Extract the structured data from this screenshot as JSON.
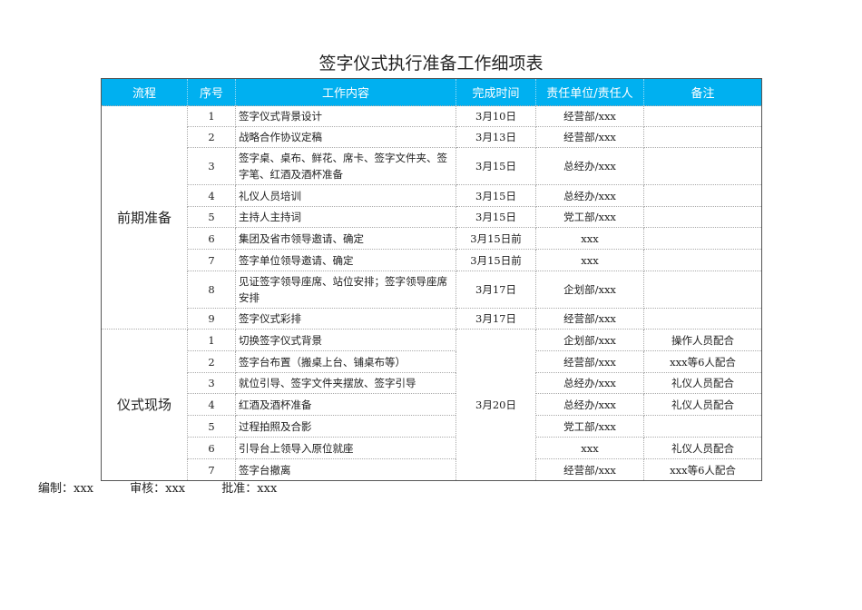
{
  "title": "签字仪式执行准备工作细项表",
  "headers": [
    "流程",
    "序号",
    "工作内容",
    "完成时间",
    "责任单位/责任人",
    "备注"
  ],
  "stages": [
    {
      "name": "前期准备",
      "rows": [
        {
          "no": "1",
          "task": "签字仪式背景设计",
          "time": "3月10日",
          "owner": "经营部/xxx",
          "note": ""
        },
        {
          "no": "2",
          "task": "战略合作协议定稿",
          "time": "3月13日",
          "owner": "经营部/xxx",
          "note": ""
        },
        {
          "no": "3",
          "task": "签字桌、桌布、鲜花、席卡、签字文件夹、签字笔、红酒及酒杯准备",
          "time": "3月15日",
          "owner": "总经办/xxx",
          "note": ""
        },
        {
          "no": "4",
          "task": "礼仪人员培训",
          "time": "3月15日",
          "owner": "总经办/xxx",
          "note": ""
        },
        {
          "no": "5",
          "task": "主持人主持词",
          "time": "3月15日",
          "owner": "党工部/xxx",
          "note": ""
        },
        {
          "no": "6",
          "task": "集团及省市领导邀请、确定",
          "time": "3月15日前",
          "owner": "xxx",
          "note": ""
        },
        {
          "no": "7",
          "task": "签字单位领导邀请、确定",
          "time": "3月15日前",
          "owner": "xxx",
          "note": ""
        },
        {
          "no": "8",
          "task": "见证签字领导座席、站位安排；签字领导座席安排",
          "time": "3月17日",
          "owner": "企划部/xxx",
          "note": ""
        },
        {
          "no": "9",
          "task": "签字仪式彩排",
          "time": "3月17日",
          "owner": "经营部/xxx",
          "note": ""
        }
      ]
    },
    {
      "name": "仪式现场",
      "time": "3月20日",
      "rows": [
        {
          "no": "1",
          "task": "切换签字仪式背景",
          "owner": "企划部/xxx",
          "note": "操作人员配合"
        },
        {
          "no": "2",
          "task": "签字台布置（搬桌上台、铺桌布等）",
          "owner": "经营部/xxx",
          "note": "xxx等6人配合"
        },
        {
          "no": "3",
          "task": "就位引导、签字文件夹摆放、签字引导",
          "owner": "总经办/xxx",
          "note": "礼仪人员配合"
        },
        {
          "no": "4",
          "task": "红酒及酒杯准备",
          "owner": "总经办/xxx",
          "note": "礼仪人员配合"
        },
        {
          "no": "5",
          "task": "过程拍照及合影",
          "owner": "党工部/xxx",
          "note": ""
        },
        {
          "no": "6",
          "task": "引导台上领导入原位就座",
          "owner": "xxx",
          "note": "礼仪人员配合"
        },
        {
          "no": "7",
          "task": "签字台撤离",
          "owner": "经营部/xxx",
          "note": "xxx等6人配合"
        }
      ]
    }
  ],
  "footer": {
    "editor": "编制：xxx",
    "reviewer": "审核：xxx",
    "approver": "批准：xxx"
  },
  "colors": {
    "header_bg": "#00B0F0"
  }
}
